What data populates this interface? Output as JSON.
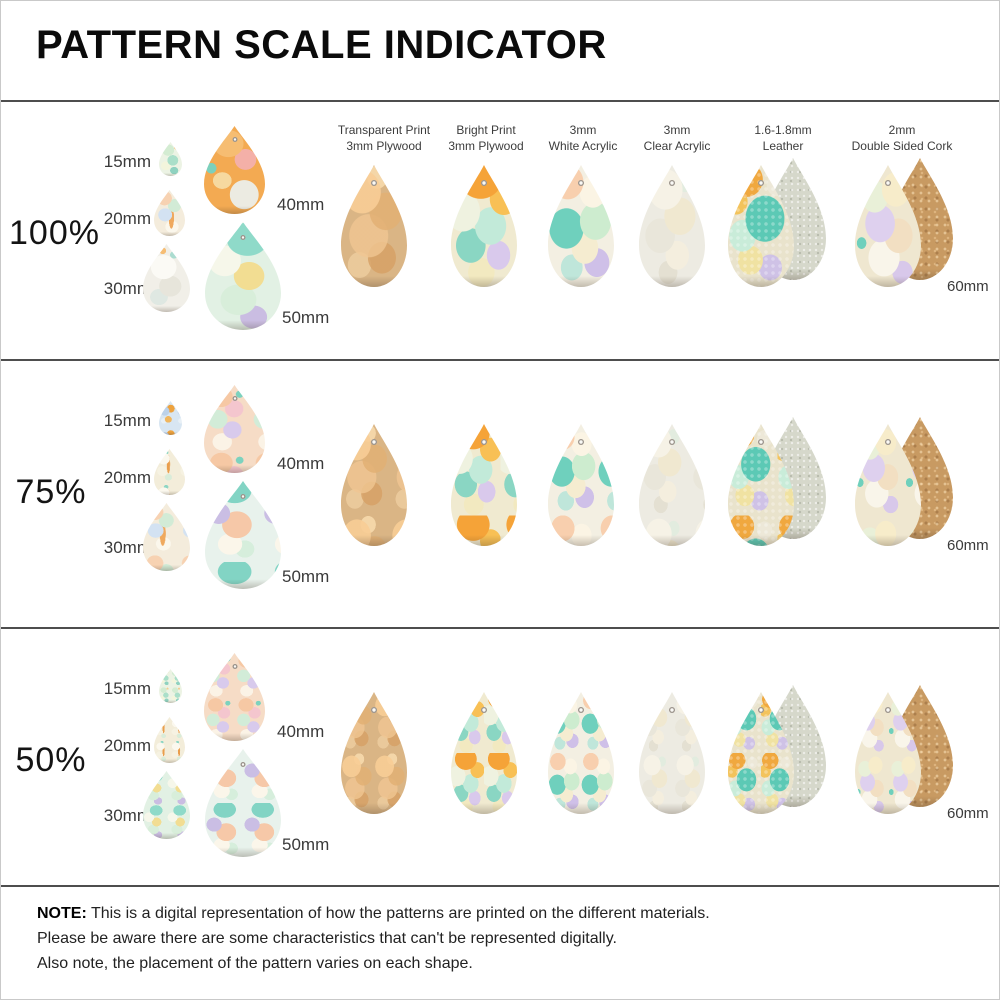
{
  "title": "PATTERN SCALE INDICATOR",
  "palette": {
    "divider_line": "#4e4e4e",
    "title_text": "#0b0b0b",
    "label_text": "#3a3a3a",
    "wood_plywood": "#dab585",
    "bright_orange": "#f5a338",
    "teal_paint": "#5cc9b5",
    "mint_paint": "#cdeccf",
    "lavender_paint": "#cfc0e8",
    "cream_paint": "#f3ecd0",
    "leather_back_suede": "#d6d8cb",
    "cork": "#c89a62"
  },
  "columns": [
    {
      "label": "Transparent Print\n3mm Plywood",
      "pattern": "wood"
    },
    {
      "label": "Bright Print\n3mm Plywood",
      "pattern": "bright"
    },
    {
      "label": "3mm\nWhite Acrylic",
      "pattern": "acrylic"
    },
    {
      "label": "3mm\nClear Acrylic",
      "pattern": "clear"
    },
    {
      "label": "1.6-1.8mm\nLeather",
      "pattern": "leather",
      "back_pattern": "leather-back"
    },
    {
      "label": "2mm\nDouble Sided Cork",
      "pattern": "cork-front",
      "back_pattern": "cork-back"
    }
  ],
  "rows": [
    {
      "scale_label": "100%",
      "demo": [
        {
          "label": "15mm",
          "pattern": "mint"
        },
        {
          "label": "20mm",
          "pattern": "pastel"
        },
        {
          "label": "30mm",
          "pattern": "pale"
        },
        {
          "label": "40mm",
          "pattern": "orange"
        },
        {
          "label": "50mm",
          "pattern": "tealmix"
        }
      ],
      "right_label": "60mm"
    },
    {
      "scale_label": "75%",
      "demo": [
        {
          "label": "15mm",
          "pattern": "blue"
        },
        {
          "label": "20mm",
          "pattern": "cream"
        },
        {
          "label": "30mm",
          "pattern": "pastel"
        },
        {
          "label": "40mm",
          "pattern": "peach"
        },
        {
          "label": "50mm",
          "pattern": "swirl"
        }
      ],
      "right_label": "60mm"
    },
    {
      "scale_label": "50%",
      "demo": [
        {
          "label": "15mm",
          "pattern": "mint"
        },
        {
          "label": "20mm",
          "pattern": "cream"
        },
        {
          "label": "30mm",
          "pattern": "tealmix"
        },
        {
          "label": "40mm",
          "pattern": "peach"
        },
        {
          "label": "50mm",
          "pattern": "swirl"
        }
      ],
      "right_label": "60mm"
    }
  ],
  "note": {
    "prefix": "NOTE:",
    "line1": "This is a digital representation of how the patterns are printed on the different materials.",
    "line2": "Please be aware there are some characteristics that can't be represented digitally.",
    "line3": "Also note, the placement of the pattern varies on each shape."
  }
}
